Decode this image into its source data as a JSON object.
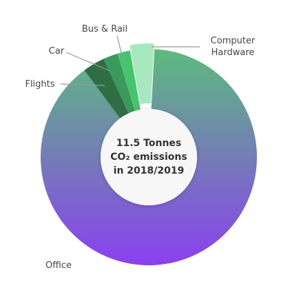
{
  "chart_data": {
    "type": "donut",
    "categories": [
      "Office",
      "Flights",
      "Car",
      "Bus & Rail",
      "Computer Hardware"
    ],
    "values": [
      89,
      3.3,
      2.2,
      1.9,
      3.6
    ],
    "colors": [
      [
        "#5dbb7d",
        "#8b3ff0"
      ],
      "#2f6e45",
      "#3a9a5c",
      "#47c46f",
      "#a8e8c0"
    ],
    "center_text": [
      "11.5 Tonnes",
      "CO₂ emissions",
      "in 2018/2019"
    ]
  }
}
